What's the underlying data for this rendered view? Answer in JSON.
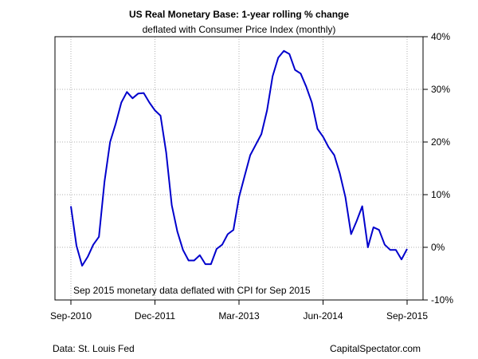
{
  "chart_data": {
    "type": "line",
    "title": "US Real Monetary Base: 1-year rolling % change",
    "subtitle": "deflated with Consumer Price Index (monthly)",
    "xlabel": "",
    "ylabel": "",
    "x_tick_labels": [
      "Sep-2010",
      "Dec-2011",
      "Mar-2013",
      "Jun-2014",
      "Sep-2015"
    ],
    "y_tick_labels": [
      "-10%",
      "0%",
      "10%",
      "20%",
      "30%",
      "40%"
    ],
    "ylim": [
      -10,
      40
    ],
    "y_ticks": [
      -10,
      0,
      10,
      20,
      30,
      40
    ],
    "grid": true,
    "y_axis_side": "right",
    "line_color": "#0000cc",
    "x_start": "Sep-2010",
    "x_end": "Sep-2015",
    "annotation": "Sep 2015 monetary data deflated with CPI for Sep 2015",
    "series": [
      {
        "values": [
          7.8,
          0.3,
          -3.5,
          -1.8,
          0.5,
          2.0,
          12.5,
          20.0,
          23.5,
          27.5,
          29.5,
          28.3,
          29.2,
          29.3,
          27.5,
          26.0,
          25.0,
          18.0,
          8.0,
          3.0,
          -0.5,
          -2.5,
          -2.5,
          -1.5,
          -3.2,
          -3.2,
          -0.3,
          0.5,
          2.5,
          3.3,
          9.5,
          13.5,
          17.5,
          19.5,
          21.5,
          26.0,
          32.5,
          36.0,
          37.3,
          36.7,
          33.7,
          33.0,
          30.5,
          27.5,
          22.5,
          21.0,
          19.0,
          17.5,
          14.0,
          9.5,
          2.5,
          5.0,
          7.8,
          0.0,
          3.8,
          3.3,
          0.5,
          -0.5,
          -0.5,
          -2.3,
          -0.3
        ]
      }
    ]
  },
  "footer": {
    "source": "Data: St. Louis Fed",
    "brand": "CapitalSpectator.com"
  }
}
